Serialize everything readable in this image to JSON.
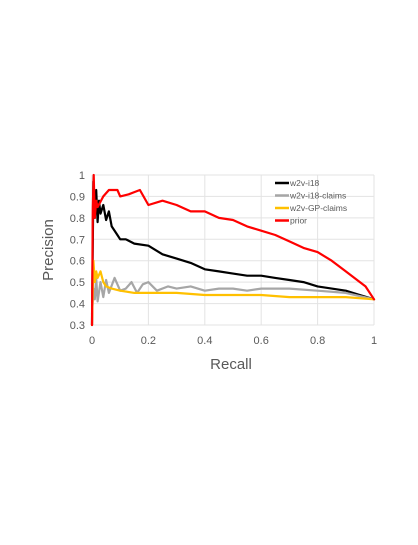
{
  "chart_data": {
    "type": "line",
    "xlabel": "Recall",
    "ylabel": "Precision",
    "xlim": [
      0,
      1
    ],
    "ylim": [
      0.3,
      1
    ],
    "x_ticks": [
      "0",
      "0.2",
      "0.4",
      "0.6",
      "0.8",
      "1"
    ],
    "y_ticks": [
      "0.3",
      "0.4",
      "0.5",
      "0.6",
      "0.7",
      "0.8",
      "0.9",
      "1"
    ],
    "grid": true,
    "legend_position": "top-right",
    "series": [
      {
        "name": "w2v-i18",
        "color": "#000000",
        "points": [
          [
            0.0,
            0.3
          ],
          [
            0.005,
            0.97
          ],
          [
            0.01,
            0.8
          ],
          [
            0.015,
            0.93
          ],
          [
            0.02,
            0.78
          ],
          [
            0.025,
            0.88
          ],
          [
            0.03,
            0.82
          ],
          [
            0.04,
            0.86
          ],
          [
            0.05,
            0.79
          ],
          [
            0.06,
            0.83
          ],
          [
            0.07,
            0.76
          ],
          [
            0.08,
            0.74
          ],
          [
            0.09,
            0.72
          ],
          [
            0.1,
            0.7
          ],
          [
            0.12,
            0.7
          ],
          [
            0.15,
            0.68
          ],
          [
            0.2,
            0.67
          ],
          [
            0.25,
            0.63
          ],
          [
            0.3,
            0.61
          ],
          [
            0.35,
            0.59
          ],
          [
            0.4,
            0.56
          ],
          [
            0.45,
            0.55
          ],
          [
            0.5,
            0.54
          ],
          [
            0.55,
            0.53
          ],
          [
            0.6,
            0.53
          ],
          [
            0.65,
            0.52
          ],
          [
            0.7,
            0.51
          ],
          [
            0.75,
            0.5
          ],
          [
            0.8,
            0.48
          ],
          [
            0.85,
            0.47
          ],
          [
            0.9,
            0.46
          ],
          [
            0.95,
            0.44
          ],
          [
            1.0,
            0.42
          ]
        ]
      },
      {
        "name": "w2v-i18-claims",
        "color": "#a6a6a6",
        "points": [
          [
            0.0,
            0.35
          ],
          [
            0.005,
            0.47
          ],
          [
            0.01,
            0.42
          ],
          [
            0.015,
            0.52
          ],
          [
            0.02,
            0.41
          ],
          [
            0.03,
            0.5
          ],
          [
            0.04,
            0.43
          ],
          [
            0.05,
            0.51
          ],
          [
            0.06,
            0.45
          ],
          [
            0.08,
            0.52
          ],
          [
            0.1,
            0.46
          ],
          [
            0.12,
            0.47
          ],
          [
            0.14,
            0.5
          ],
          [
            0.16,
            0.45
          ],
          [
            0.18,
            0.49
          ],
          [
            0.2,
            0.5
          ],
          [
            0.23,
            0.46
          ],
          [
            0.27,
            0.48
          ],
          [
            0.3,
            0.47
          ],
          [
            0.35,
            0.48
          ],
          [
            0.4,
            0.46
          ],
          [
            0.45,
            0.47
          ],
          [
            0.5,
            0.47
          ],
          [
            0.55,
            0.46
          ],
          [
            0.6,
            0.47
          ],
          [
            0.7,
            0.47
          ],
          [
            0.8,
            0.46
          ],
          [
            0.9,
            0.45
          ],
          [
            1.0,
            0.42
          ]
        ]
      },
      {
        "name": "w2v-GP-claims",
        "color": "#ffc000",
        "points": [
          [
            0.0,
            0.3
          ],
          [
            0.005,
            0.6
          ],
          [
            0.01,
            0.5
          ],
          [
            0.015,
            0.55
          ],
          [
            0.02,
            0.52
          ],
          [
            0.03,
            0.55
          ],
          [
            0.04,
            0.5
          ],
          [
            0.05,
            0.48
          ],
          [
            0.07,
            0.47
          ],
          [
            0.1,
            0.46
          ],
          [
            0.15,
            0.45
          ],
          [
            0.2,
            0.45
          ],
          [
            0.3,
            0.45
          ],
          [
            0.4,
            0.44
          ],
          [
            0.5,
            0.44
          ],
          [
            0.6,
            0.44
          ],
          [
            0.7,
            0.43
          ],
          [
            0.8,
            0.43
          ],
          [
            0.9,
            0.43
          ],
          [
            1.0,
            0.42
          ]
        ]
      },
      {
        "name": "prior",
        "color": "#ff0000",
        "points": [
          [
            0.0,
            0.3
          ],
          [
            0.003,
            0.85
          ],
          [
            0.006,
            1.0
          ],
          [
            0.01,
            0.8
          ],
          [
            0.015,
            0.88
          ],
          [
            0.02,
            0.85
          ],
          [
            0.04,
            0.9
          ],
          [
            0.06,
            0.93
          ],
          [
            0.09,
            0.93
          ],
          [
            0.1,
            0.9
          ],
          [
            0.13,
            0.91
          ],
          [
            0.15,
            0.92
          ],
          [
            0.17,
            0.93
          ],
          [
            0.2,
            0.86
          ],
          [
            0.25,
            0.88
          ],
          [
            0.3,
            0.86
          ],
          [
            0.35,
            0.83
          ],
          [
            0.4,
            0.83
          ],
          [
            0.45,
            0.8
          ],
          [
            0.5,
            0.79
          ],
          [
            0.55,
            0.76
          ],
          [
            0.6,
            0.74
          ],
          [
            0.65,
            0.72
          ],
          [
            0.7,
            0.69
          ],
          [
            0.75,
            0.66
          ],
          [
            0.8,
            0.64
          ],
          [
            0.85,
            0.6
          ],
          [
            0.9,
            0.55
          ],
          [
            0.95,
            0.5
          ],
          [
            0.97,
            0.48
          ],
          [
            1.0,
            0.42
          ]
        ]
      }
    ]
  }
}
